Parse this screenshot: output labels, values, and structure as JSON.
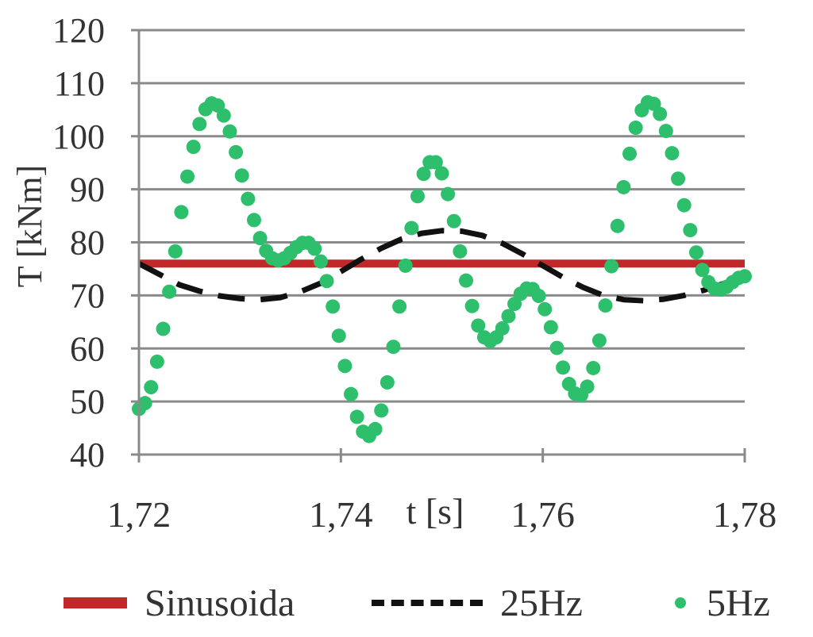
{
  "chart_data": {
    "type": "line",
    "title": "",
    "xlabel": "t [s]",
    "ylabel": "T [kNm]",
    "xlim": [
      1.72,
      1.78
    ],
    "ylim": [
      40,
      120
    ],
    "xticks": [
      1.72,
      1.74,
      1.76,
      1.78
    ],
    "xtick_labels": [
      "1,72",
      "1,74",
      "1,76",
      "1,78"
    ],
    "yticks": [
      40,
      50,
      60,
      70,
      80,
      90,
      100,
      110,
      120
    ],
    "ytick_labels": [
      "40",
      "50",
      "60",
      "70",
      "80",
      "90",
      "100",
      "110",
      "120"
    ],
    "grid": true,
    "legend_position": "bottom",
    "series": [
      {
        "name": "Sinusoida",
        "style": "solid",
        "color": "#c0282a",
        "x": [
          1.72,
          1.78
        ],
        "values": [
          76,
          76
        ]
      },
      {
        "name": "25Hz",
        "style": "dashed",
        "color": "#111111",
        "x": [
          1.72,
          1.722,
          1.724,
          1.726,
          1.728,
          1.73,
          1.732,
          1.734,
          1.736,
          1.738,
          1.74,
          1.742,
          1.744,
          1.746,
          1.748,
          1.75,
          1.752,
          1.754,
          1.756,
          1.758,
          1.76,
          1.762,
          1.764,
          1.766,
          1.768,
          1.77,
          1.772,
          1.774,
          1.776,
          1.778,
          1.78
        ],
        "values": [
          76.0,
          74.0,
          72.0,
          70.8,
          69.9,
          69.4,
          69.2,
          69.6,
          70.7,
          72.3,
          74.5,
          76.8,
          78.9,
          80.6,
          81.7,
          82.2,
          82.1,
          81.3,
          79.8,
          77.8,
          75.6,
          73.4,
          71.5,
          70.0,
          69.2,
          69.0,
          69.3,
          70.0,
          71.0,
          72.3,
          73.5
        ]
      },
      {
        "name": "5Hz",
        "style": "dots",
        "color": "#2dbf6b",
        "x": [
          1.72,
          1.7206,
          1.7212,
          1.7218,
          1.7224,
          1.723,
          1.7236,
          1.7242,
          1.7248,
          1.7254,
          1.726,
          1.7266,
          1.7272,
          1.7278,
          1.7284,
          1.729,
          1.7296,
          1.7302,
          1.7308,
          1.7314,
          1.732,
          1.7326,
          1.7332,
          1.7338,
          1.7344,
          1.735,
          1.7356,
          1.7362,
          1.7368,
          1.7374,
          1.738,
          1.7386,
          1.7392,
          1.7398,
          1.7404,
          1.741,
          1.7416,
          1.7422,
          1.7428,
          1.7434,
          1.744,
          1.7446,
          1.7452,
          1.7458,
          1.7464,
          1.747,
          1.7476,
          1.7482,
          1.7488,
          1.7494,
          1.75,
          1.7506,
          1.7512,
          1.7518,
          1.7524,
          1.753,
          1.7536,
          1.7542,
          1.7548,
          1.7554,
          1.756,
          1.7566,
          1.7572,
          1.7578,
          1.7584,
          1.759,
          1.7596,
          1.7602,
          1.7608,
          1.7614,
          1.762,
          1.7626,
          1.7632,
          1.7638,
          1.7644,
          1.765,
          1.7656,
          1.7662,
          1.7668,
          1.7674,
          1.768,
          1.7686,
          1.7692,
          1.7698,
          1.7704,
          1.771,
          1.7716,
          1.7722,
          1.7728,
          1.7734,
          1.774,
          1.7746,
          1.7752,
          1.7758,
          1.7764,
          1.777,
          1.7776,
          1.7782,
          1.7788,
          1.7794,
          1.78
        ],
        "values": [
          48.6,
          49.7,
          52.7,
          57.5,
          63.7,
          70.7,
          78.3,
          85.7,
          92.4,
          98.0,
          102.3,
          105.1,
          106.2,
          105.8,
          103.9,
          100.9,
          97.0,
          92.6,
          88.2,
          84.2,
          80.8,
          78.4,
          77.0,
          76.6,
          77.0,
          78.0,
          79.1,
          79.9,
          79.9,
          78.8,
          76.4,
          72.7,
          67.9,
          62.4,
          56.7,
          51.4,
          47.1,
          44.3,
          43.5,
          44.8,
          48.3,
          53.6,
          60.3,
          67.9,
          75.6,
          82.7,
          88.7,
          92.9,
          95.1,
          95.1,
          93.0,
          89.1,
          84.0,
          78.3,
          72.8,
          68.0,
          64.3,
          62.1,
          61.4,
          62.1,
          63.8,
          66.1,
          68.4,
          70.3,
          71.3,
          71.2,
          69.9,
          67.4,
          64.0,
          60.1,
          56.4,
          53.3,
          51.5,
          51.2,
          52.8,
          56.3,
          61.5,
          68.1,
          75.5,
          83.1,
          90.4,
          96.7,
          101.6,
          104.9,
          106.4,
          106.1,
          104.2,
          101.0,
          96.8,
          92.0,
          87.0,
          82.3,
          78.1,
          74.8,
          72.5,
          71.3,
          71.1,
          71.6,
          72.5,
          73.3,
          73.6
        ]
      }
    ]
  },
  "legend": {
    "items": [
      "Sinusoida",
      "25Hz",
      "5Hz"
    ]
  }
}
